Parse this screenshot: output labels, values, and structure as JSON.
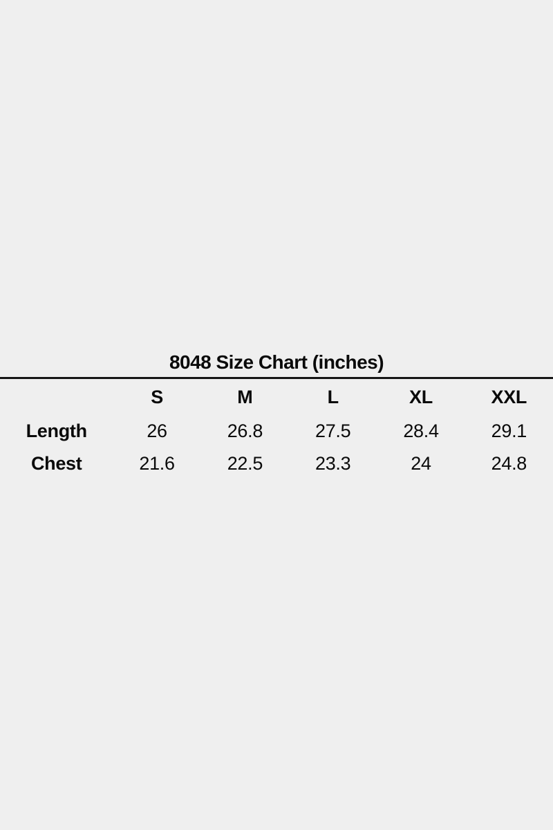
{
  "page": {
    "background_color": "#efefef",
    "text_color": "#0a0a0a",
    "divider_color": "#161616"
  },
  "size_chart": {
    "title": "8048 Size Chart (inches)",
    "columns": [
      "S",
      "M",
      "L",
      "XL",
      "XXL"
    ],
    "rows": [
      {
        "label": "Length",
        "values": [
          "26",
          "26.8",
          "27.5",
          "28.4",
          "29.1"
        ]
      },
      {
        "label": "Chest",
        "values": [
          "21.6",
          "22.5",
          "23.3",
          "24",
          "24.8"
        ]
      }
    ]
  },
  "chart_data": {
    "type": "table",
    "title": "8048 Size Chart (inches)",
    "unit": "inches",
    "columns": [
      "",
      "S",
      "M",
      "L",
      "XL",
      "XXL"
    ],
    "rows": [
      [
        "Length",
        26,
        26.8,
        27.5,
        28.4,
        29.1
      ],
      [
        "Chest",
        21.6,
        22.5,
        23.3,
        24,
        24.8
      ]
    ]
  }
}
